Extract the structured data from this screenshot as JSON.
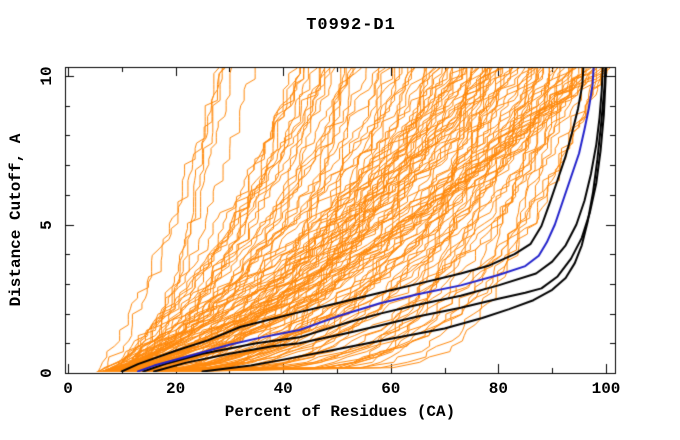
{
  "chart_data": {
    "type": "line",
    "title": "T0992-D1",
    "xlabel": "Percent of Residues (CA)",
    "ylabel": "Distance Cutoff, A",
    "xlim": [
      0,
      101.6
    ],
    "ylim": [
      0,
      10.3
    ],
    "grid": false,
    "legend": "none",
    "x_ticks_major": [
      0,
      20,
      40,
      60,
      80,
      100
    ],
    "x_ticks_minor": [
      10,
      30,
      50,
      70,
      90
    ],
    "y_ticks_major": [
      0,
      5,
      10
    ],
    "y_ticks_minor": [
      1,
      2,
      3,
      4,
      6,
      7,
      8,
      9
    ],
    "colors": {
      "background": "#ffffff",
      "frame": "#000000",
      "ensemble": "#ff8a0d",
      "highlight": "#000000",
      "best": "#2222cc"
    },
    "series": [
      {
        "name": "highlighted-model-1",
        "color": "#000000",
        "width": 2,
        "points": [
          [
            10,
            0.05
          ],
          [
            13,
            0.3
          ],
          [
            20,
            0.75
          ],
          [
            26,
            1.1
          ],
          [
            32,
            1.55
          ],
          [
            43,
            2.05
          ],
          [
            50,
            2.35
          ],
          [
            58,
            2.7
          ],
          [
            65,
            3.0
          ],
          [
            73,
            3.35
          ],
          [
            78,
            3.6
          ],
          [
            83,
            4.0
          ],
          [
            86,
            4.35
          ],
          [
            88,
            4.95
          ],
          [
            89.5,
            5.7
          ],
          [
            91,
            6.5
          ],
          [
            92.5,
            7.3
          ],
          [
            93.7,
            8.1
          ],
          [
            94.8,
            8.9
          ],
          [
            95.6,
            9.7
          ],
          [
            95.8,
            10.3
          ]
        ]
      },
      {
        "name": "highlighted-model-2",
        "color": "#000000",
        "width": 2,
        "points": [
          [
            14,
            0.05
          ],
          [
            18,
            0.3
          ],
          [
            25,
            0.65
          ],
          [
            35,
            1.0
          ],
          [
            43,
            1.2
          ],
          [
            52,
            1.7
          ],
          [
            58,
            2.0
          ],
          [
            65,
            2.3
          ],
          [
            73,
            2.6
          ],
          [
            80,
            2.95
          ],
          [
            87,
            3.35
          ],
          [
            90,
            3.75
          ],
          [
            92.5,
            4.3
          ],
          [
            94.5,
            5.0
          ],
          [
            96,
            5.8
          ],
          [
            97.2,
            6.7
          ],
          [
            98.2,
            7.7
          ],
          [
            98.8,
            8.6
          ],
          [
            99.2,
            9.5
          ],
          [
            99.4,
            10.3
          ]
        ]
      },
      {
        "name": "highlighted-model-3",
        "color": "#000000",
        "width": 2,
        "points": [
          [
            16,
            0.05
          ],
          [
            22,
            0.35
          ],
          [
            30,
            0.65
          ],
          [
            38,
            0.9
          ],
          [
            43,
            1.0
          ],
          [
            52,
            1.35
          ],
          [
            58,
            1.6
          ],
          [
            65,
            1.9
          ],
          [
            73,
            2.2
          ],
          [
            80,
            2.5
          ],
          [
            85,
            2.7
          ],
          [
            88,
            2.85
          ],
          [
            91,
            3.25
          ],
          [
            93.5,
            3.85
          ],
          [
            95.5,
            4.55
          ],
          [
            97,
            5.4
          ],
          [
            98.2,
            6.4
          ],
          [
            99,
            7.5
          ],
          [
            99.6,
            8.7
          ],
          [
            99.9,
            9.8
          ],
          [
            100,
            10.3
          ]
        ]
      },
      {
        "name": "highlighted-model-4",
        "color": "#000000",
        "width": 2,
        "points": [
          [
            25,
            0.05
          ],
          [
            34,
            0.25
          ],
          [
            40,
            0.45
          ],
          [
            50,
            0.8
          ],
          [
            60,
            1.15
          ],
          [
            70,
            1.5
          ],
          [
            77,
            1.85
          ],
          [
            82,
            2.15
          ],
          [
            86.5,
            2.45
          ],
          [
            90,
            2.8
          ],
          [
            92.5,
            3.2
          ],
          [
            94.2,
            3.7
          ],
          [
            95.5,
            4.3
          ],
          [
            96.6,
            5.1
          ],
          [
            97.6,
            6.1
          ],
          [
            98.4,
            7.2
          ],
          [
            99.1,
            8.4
          ],
          [
            99.7,
            9.6
          ],
          [
            99.9,
            10.3
          ]
        ]
      },
      {
        "name": "best-model-blue",
        "color": "#2222cc",
        "width": 2,
        "points": [
          [
            13,
            0.05
          ],
          [
            16,
            0.25
          ],
          [
            22,
            0.55
          ],
          [
            30,
            0.95
          ],
          [
            36,
            1.2
          ],
          [
            43,
            1.45
          ],
          [
            50,
            1.9
          ],
          [
            58,
            2.35
          ],
          [
            65,
            2.65
          ],
          [
            73,
            2.95
          ],
          [
            80,
            3.3
          ],
          [
            85,
            3.6
          ],
          [
            87.5,
            3.95
          ],
          [
            89,
            4.4
          ],
          [
            90.5,
            5.0
          ],
          [
            92,
            5.8
          ],
          [
            93.5,
            6.6
          ],
          [
            95,
            7.4
          ],
          [
            96,
            8.2
          ],
          [
            96.8,
            8.9
          ],
          [
            97.5,
            9.7
          ],
          [
            97.7,
            10.3
          ]
        ]
      }
    ],
    "orange_ensemble": {
      "description": "Fan of ~135 thin orange model curves rising from (~5-7%, 0 A) toward the top; best curves hug the right edge (reach ~100% at low cutoff), worst exit the top near 20%.",
      "count": 135,
      "seed": 7,
      "x_start_range": [
        4.8,
        7.0
      ],
      "x_top_range": [
        20,
        101.3
      ],
      "quality_skew": 0.5,
      "shape_exponent_range": [
        0.1,
        0.8
      ],
      "jitter": 1.3,
      "y_step": 0.18,
      "y_max": 10.32
    }
  }
}
